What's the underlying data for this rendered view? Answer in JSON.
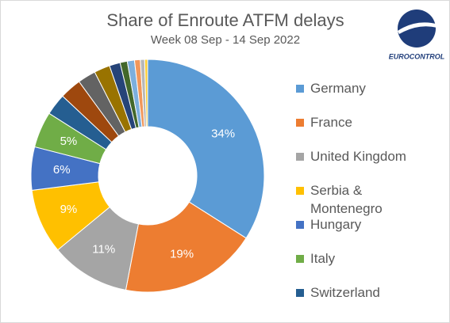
{
  "chart_data": {
    "type": "pie",
    "title": "Share of Enroute ATFM delays",
    "subtitle": "Week 08 Sep - 14 Sep 2022",
    "logo_text": "EUROCONTROL",
    "donut": true,
    "categories": [
      "Germany",
      "France",
      "United Kingdom",
      "Serbia & Montenegro",
      "Hungary",
      "Italy",
      "Switzerland",
      null,
      null,
      null,
      null,
      null,
      null,
      null,
      null,
      null
    ],
    "values": [
      34,
      19,
      11,
      9,
      6,
      5,
      3,
      3,
      2.5,
      2.2,
      1.5,
      1,
      1,
      0.8,
      0.6,
      0.4
    ],
    "value_labels": [
      "34%",
      "19%",
      "11%",
      "9%",
      "6%",
      "5%",
      null,
      null,
      null,
      null,
      null,
      null,
      null,
      null,
      null,
      null
    ],
    "colors": [
      "#5b9bd5",
      "#ed7d31",
      "#a5a5a5",
      "#ffc000",
      "#4472c4",
      "#70ad47",
      "#255e91",
      "#9e480e",
      "#636363",
      "#997300",
      "#264478",
      "#43682b",
      "#7cafdd",
      "#f1975a",
      "#b7b7b7",
      "#ffcd33"
    ]
  }
}
